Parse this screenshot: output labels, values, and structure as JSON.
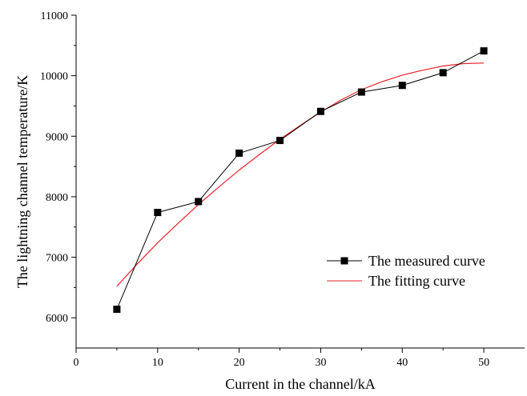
{
  "chart_data": {
    "type": "line",
    "xlabel": "Current in the channel/kA",
    "ylabel": "The lightning channel temperature/K",
    "xlim": [
      0,
      55
    ],
    "ylim": [
      5500,
      11000
    ],
    "x_ticks": [
      0,
      10,
      20,
      30,
      40,
      50
    ],
    "y_ticks": [
      6000,
      7000,
      8000,
      9000,
      10000,
      11000
    ],
    "grid": false,
    "legend_position": "lower-right",
    "series": [
      {
        "name": "The measured curve",
        "style": "line-with-square-markers",
        "color": "#000000",
        "x": [
          5,
          10,
          15,
          20,
          25,
          30,
          35,
          40,
          45,
          50
        ],
        "y": [
          6140,
          7740,
          7920,
          8720,
          8930,
          9410,
          9730,
          9840,
          10050,
          10410
        ]
      },
      {
        "name": "The fitting curve",
        "style": "smooth-line",
        "color": "#e8232a",
        "x": [
          5,
          7.5,
          10,
          12.5,
          15,
          17.5,
          20,
          22.5,
          25,
          27.5,
          30,
          32.5,
          35,
          37.5,
          40,
          42.5,
          45,
          47.5,
          50
        ],
        "y": [
          6520,
          6890,
          7240,
          7560,
          7870,
          8160,
          8440,
          8700,
          8950,
          9180,
          9400,
          9600,
          9770,
          9900,
          10010,
          10090,
          10160,
          10200,
          10210
        ]
      }
    ]
  }
}
